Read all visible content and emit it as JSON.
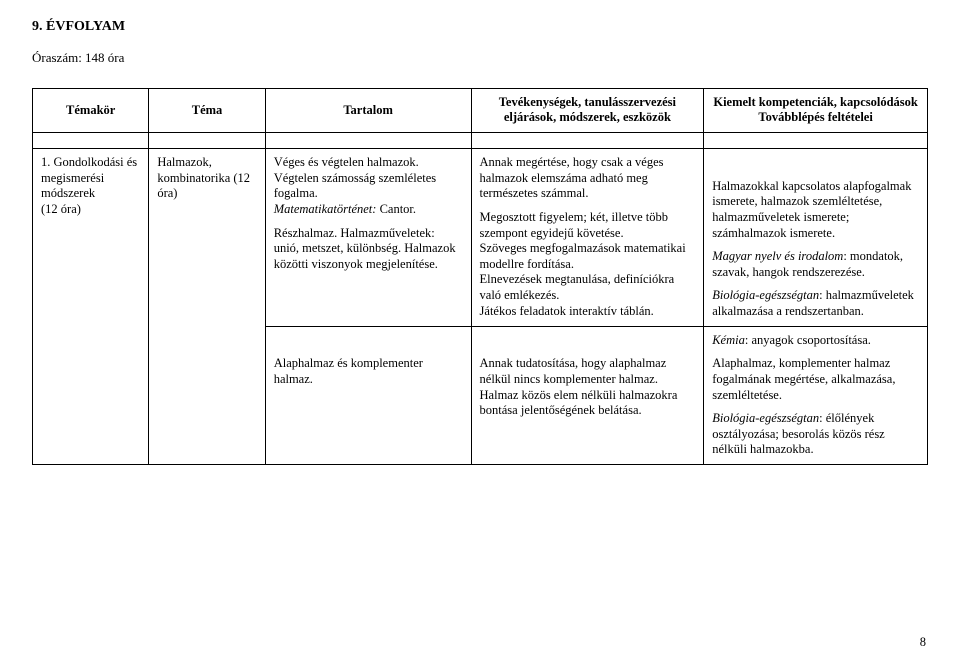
{
  "heading": "9. ÉVFOLYAM",
  "subheading": "Óraszám: 148 óra",
  "header": {
    "c1": "Témakör",
    "c2": "Téma",
    "c3": "Tartalom",
    "c4": "Tevékenységek, tanulásszervezési eljárások, módszerek, eszközök",
    "c5": "Kiemelt kompetenciák, kapcsolódások\nTovábblépés feltételei"
  },
  "row1": {
    "c1": "1. Gondolkodási és megismerési módszerek\n(12 óra)",
    "c2": "Halmazok, kombinatorika (12 óra)",
    "c3a": "Véges és végtelen halmazok. Végtelen számosság szemléletes fogalma.",
    "c3a_it": "Matematikatörténet:",
    "c3a_tail": " Cantor.",
    "c3b": "Részhalmaz. Halmazműveletek: unió, metszet, különbség. Halmazok közötti viszonyok megjelenítése.",
    "c4a": "Annak megértése, hogy csak a véges halmazok elemszáma adható meg természetes számmal.",
    "c4b": "Megosztott figyelem; két, illetve több szempont egyidejű követése.\nSzöveges megfogalmazások matematikai modellre fordítása.\nElnevezések megtanulása, definíciókra való emlékezés.\nJátékos feladatok interaktív táblán.",
    "c5b1": "Halmazokkal kapcsolatos alapfogalmak ismerete, halmazok szemléltetése, halmazműveletek ismerete; számhalmazok ismerete.",
    "c5b2_it": "Magyar nyelv és irodalom",
    "c5b2_tail": ": mondatok, szavak, hangok rendszerezése.",
    "c5b3_it": "Biológia-egészségtan",
    "c5b3_tail": ": halmazműveletek alkalmazása a rendszertanban."
  },
  "row2": {
    "c3": "Alaphalmaz és komplementer halmaz.",
    "c4": "Annak tudatosítása, hogy alaphalmaz nélkül nincs komplementer halmaz.\nHalmaz közös elem nélküli halmazokra bontása jelentőségének belátása.",
    "c5a_it": "Kémia",
    "c5a_tail": ": anyagok csoportosítása.",
    "c5b": "Alaphalmaz, komplementer halmaz fogalmának megértése, alkalmazása, szemléltetése.",
    "c5c_it": "Biológia-egészségtan",
    "c5c_tail": ": élőlények osztályozása; besorolás közös rész nélküli halmazokba."
  },
  "pagenum": "8"
}
